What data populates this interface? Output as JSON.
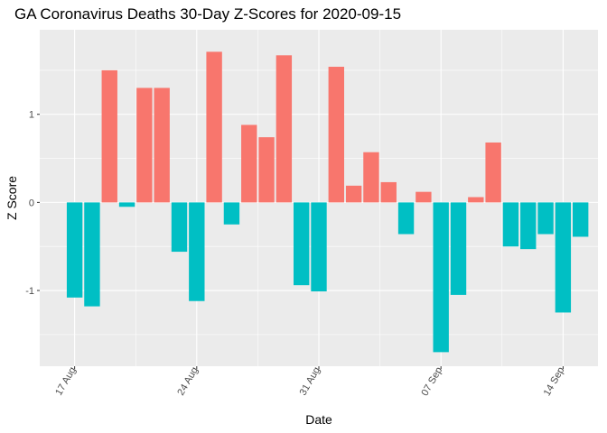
{
  "chart_data": {
    "type": "bar",
    "title": "GA Coronavirus Deaths 30-Day Z-Scores for 2020-09-15",
    "xlabel": "Date",
    "ylabel": "Z Score",
    "ylim": [
      -1.86,
      1.96
    ],
    "yticks": [
      -1,
      0,
      1
    ],
    "ytick_labels": [
      "-1",
      "0",
      "1"
    ],
    "xticks": [
      {
        "date": "2020-08-17",
        "label": "17 Aug"
      },
      {
        "date": "2020-08-24",
        "label": "24 Aug"
      },
      {
        "date": "2020-08-31",
        "label": "31 Aug"
      },
      {
        "date": "2020-09-07",
        "label": "07 Sep"
      },
      {
        "date": "2020-09-14",
        "label": "14 Sep"
      }
    ],
    "xlim": [
      "2020-08-15",
      "2020-09-16"
    ],
    "grid": true,
    "positive_color": "#F8766D",
    "negative_color": "#00BFC4",
    "panel_color": "#EBEBEB",
    "dates": [
      "2020-08-17",
      "2020-08-18",
      "2020-08-19",
      "2020-08-20",
      "2020-08-21",
      "2020-08-22",
      "2020-08-23",
      "2020-08-24",
      "2020-08-25",
      "2020-08-26",
      "2020-08-27",
      "2020-08-28",
      "2020-08-29",
      "2020-08-30",
      "2020-08-31",
      "2020-09-01",
      "2020-09-02",
      "2020-09-03",
      "2020-09-04",
      "2020-09-05",
      "2020-09-06",
      "2020-09-07",
      "2020-09-08",
      "2020-09-09",
      "2020-09-10",
      "2020-09-11",
      "2020-09-12",
      "2020-09-13",
      "2020-09-14",
      "2020-09-15"
    ],
    "values": [
      -1.08,
      -1.18,
      1.5,
      -0.05,
      1.3,
      1.3,
      -0.56,
      -1.12,
      1.71,
      -0.25,
      0.88,
      0.74,
      1.67,
      -0.94,
      -1.01,
      1.54,
      0.19,
      0.57,
      0.23,
      -0.36,
      0.12,
      -1.7,
      -1.05,
      0.06,
      0.68,
      -0.5,
      -0.53,
      -0.36,
      -1.25,
      -0.39
    ]
  }
}
